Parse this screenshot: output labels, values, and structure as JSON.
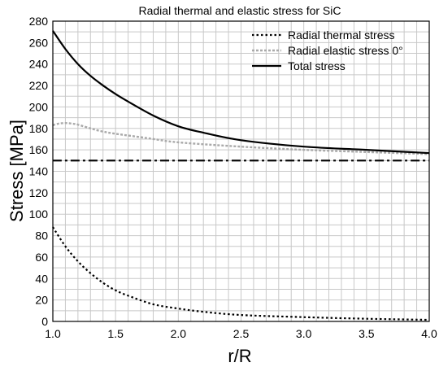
{
  "chart_data": {
    "type": "line",
    "title": "Radial thermal and elastic stress for SiC",
    "xlabel": "r/R",
    "ylabel": "Stress [MPa]",
    "xlim": [
      1.0,
      4.0
    ],
    "ylim": [
      0,
      280
    ],
    "x_ticks": [
      "1.0",
      "1.5",
      "2.0",
      "2.5",
      "3.0",
      "3.5",
      "4.0"
    ],
    "y_ticks": [
      "0",
      "20",
      "40",
      "60",
      "80",
      "100",
      "120",
      "140",
      "160",
      "180",
      "200",
      "220",
      "240",
      "260",
      "280"
    ],
    "grid": true,
    "legend_position": "top-right",
    "series": [
      {
        "name": "Radial thermal stress",
        "style": "dotted",
        "color": "#000000",
        "x": [
          1.0,
          1.1,
          1.2,
          1.3,
          1.4,
          1.5,
          1.6,
          1.8,
          2.0,
          2.2,
          2.5,
          3.0,
          3.5,
          4.0
        ],
        "y": [
          88,
          70,
          56,
          45,
          36,
          29,
          24,
          16,
          12,
          9,
          6,
          4,
          2.5,
          1.5
        ]
      },
      {
        "name": "Radial elastic stress 0°",
        "style": "dashed",
        "color": "#aaaaaa",
        "x": [
          1.0,
          1.05,
          1.1,
          1.15,
          1.2,
          1.3,
          1.4,
          1.5,
          1.75,
          2.0,
          2.5,
          3.0,
          3.5,
          4.0
        ],
        "y": [
          183,
          184.5,
          185,
          184.5,
          183.5,
          180,
          177,
          175,
          171,
          167,
          163,
          160,
          158,
          156
        ]
      },
      {
        "name": "Total stress",
        "style": "solid",
        "color": "#000000",
        "x": [
          1.0,
          1.1,
          1.2,
          1.3,
          1.4,
          1.5,
          1.6,
          1.8,
          2.0,
          2.2,
          2.5,
          3.0,
          3.5,
          4.0
        ],
        "y": [
          271,
          254,
          240,
          229,
          220,
          212,
          205,
          192,
          182,
          176,
          169,
          163,
          160,
          157
        ]
      },
      {
        "name": "",
        "style": "dash-dot",
        "color": "#000000",
        "x": [
          1.0,
          4.0
        ],
        "y": [
          150,
          150
        ]
      }
    ]
  }
}
